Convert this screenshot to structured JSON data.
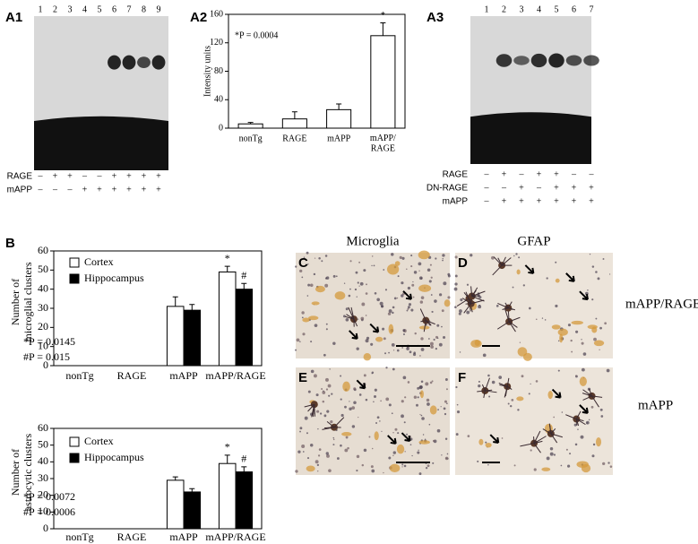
{
  "panel_labels": {
    "a1": "A1",
    "a2": "A2",
    "a3": "A3",
    "b": "B",
    "c": "C",
    "d": "D",
    "e": "E",
    "f": "F"
  },
  "gel_a1": {
    "lanes": [
      1,
      2,
      3,
      4,
      5,
      6,
      7,
      8,
      9
    ],
    "rows": [
      {
        "label": "RAGE",
        "signs": [
          "–",
          "+",
          "+",
          "–",
          "–",
          "+",
          "+",
          "+",
          "+"
        ]
      },
      {
        "label": "mAPP",
        "signs": [
          "–",
          "–",
          "–",
          "+",
          "+",
          "+",
          "+",
          "+",
          "+"
        ]
      }
    ]
  },
  "gel_a3": {
    "lanes": [
      1,
      2,
      3,
      4,
      5,
      6,
      7
    ],
    "rows": [
      {
        "label": "RAGE",
        "signs": [
          "–",
          "+",
          "–",
          "+",
          "+",
          "–",
          "–"
        ]
      },
      {
        "label": "DN-RAGE",
        "signs": [
          "–",
          "–",
          "+",
          "–",
          "+",
          "+",
          "+"
        ]
      },
      {
        "label": "mAPP",
        "signs": [
          "–",
          "+",
          "+",
          "+",
          "+",
          "+",
          "+"
        ]
      }
    ]
  },
  "images": {
    "columns": [
      "Microglia",
      "GFAP"
    ],
    "rows": [
      "mAPP/RAGE",
      "mAPP"
    ]
  },
  "chart_data": [
    {
      "type": "bar",
      "y_label": "Intensity units",
      "annotations": [
        "*P = 0.0004"
      ],
      "categories": [
        "nonTg",
        "RAGE",
        "mAPP",
        "mAPP/\nRAGE"
      ],
      "values": [
        6,
        13,
        26,
        130
      ],
      "errors": [
        2,
        10,
        8,
        18
      ],
      "markers": [
        null,
        null,
        null,
        "*"
      ],
      "color": "#ffffff",
      "ylim": [
        0,
        160
      ],
      "yticks": [
        0,
        40,
        80,
        120,
        160
      ]
    },
    {
      "type": "grouped_bar",
      "y_label": "Number of\nmicroglial clusters",
      "annotations": [
        "*P = 0.0145",
        "#P = 0.015"
      ],
      "categories": [
        "nonTg",
        "RAGE",
        "mAPP",
        "mAPP/RAGE"
      ],
      "series": [
        {
          "name": "Cortex",
          "color": "#ffffff",
          "values": [
            0,
            0,
            31,
            49
          ],
          "errors": [
            0,
            0,
            5,
            3
          ],
          "markers": [
            null,
            null,
            null,
            "*"
          ]
        },
        {
          "name": "Hippocampus",
          "color": "#000000",
          "values": [
            0,
            0,
            29,
            40
          ],
          "errors": [
            0,
            0,
            3,
            3
          ],
          "markers": [
            null,
            null,
            null,
            "#"
          ]
        }
      ],
      "ylim": [
        0,
        60
      ],
      "yticks": [
        0,
        10,
        20,
        30,
        40,
        50,
        60
      ]
    },
    {
      "type": "grouped_bar",
      "y_label": "Number of\nastrocytic clusters",
      "annotations": [
        "*P = 0.0072",
        "#P = 0.0006"
      ],
      "categories": [
        "nonTg",
        "RAGE",
        "mAPP",
        "mAPP/RAGE"
      ],
      "series": [
        {
          "name": "Cortex",
          "color": "#ffffff",
          "values": [
            0,
            0,
            29,
            39
          ],
          "errors": [
            0,
            0,
            2,
            5
          ],
          "markers": [
            null,
            null,
            null,
            "*"
          ]
        },
        {
          "name": "Hippocampus",
          "color": "#000000",
          "values": [
            0,
            0,
            22,
            34
          ],
          "errors": [
            0,
            0,
            2,
            3
          ],
          "markers": [
            null,
            null,
            null,
            "#"
          ]
        }
      ],
      "ylim": [
        0,
        60
      ],
      "yticks": [
        0,
        10,
        20,
        30,
        40,
        50,
        60
      ]
    }
  ]
}
